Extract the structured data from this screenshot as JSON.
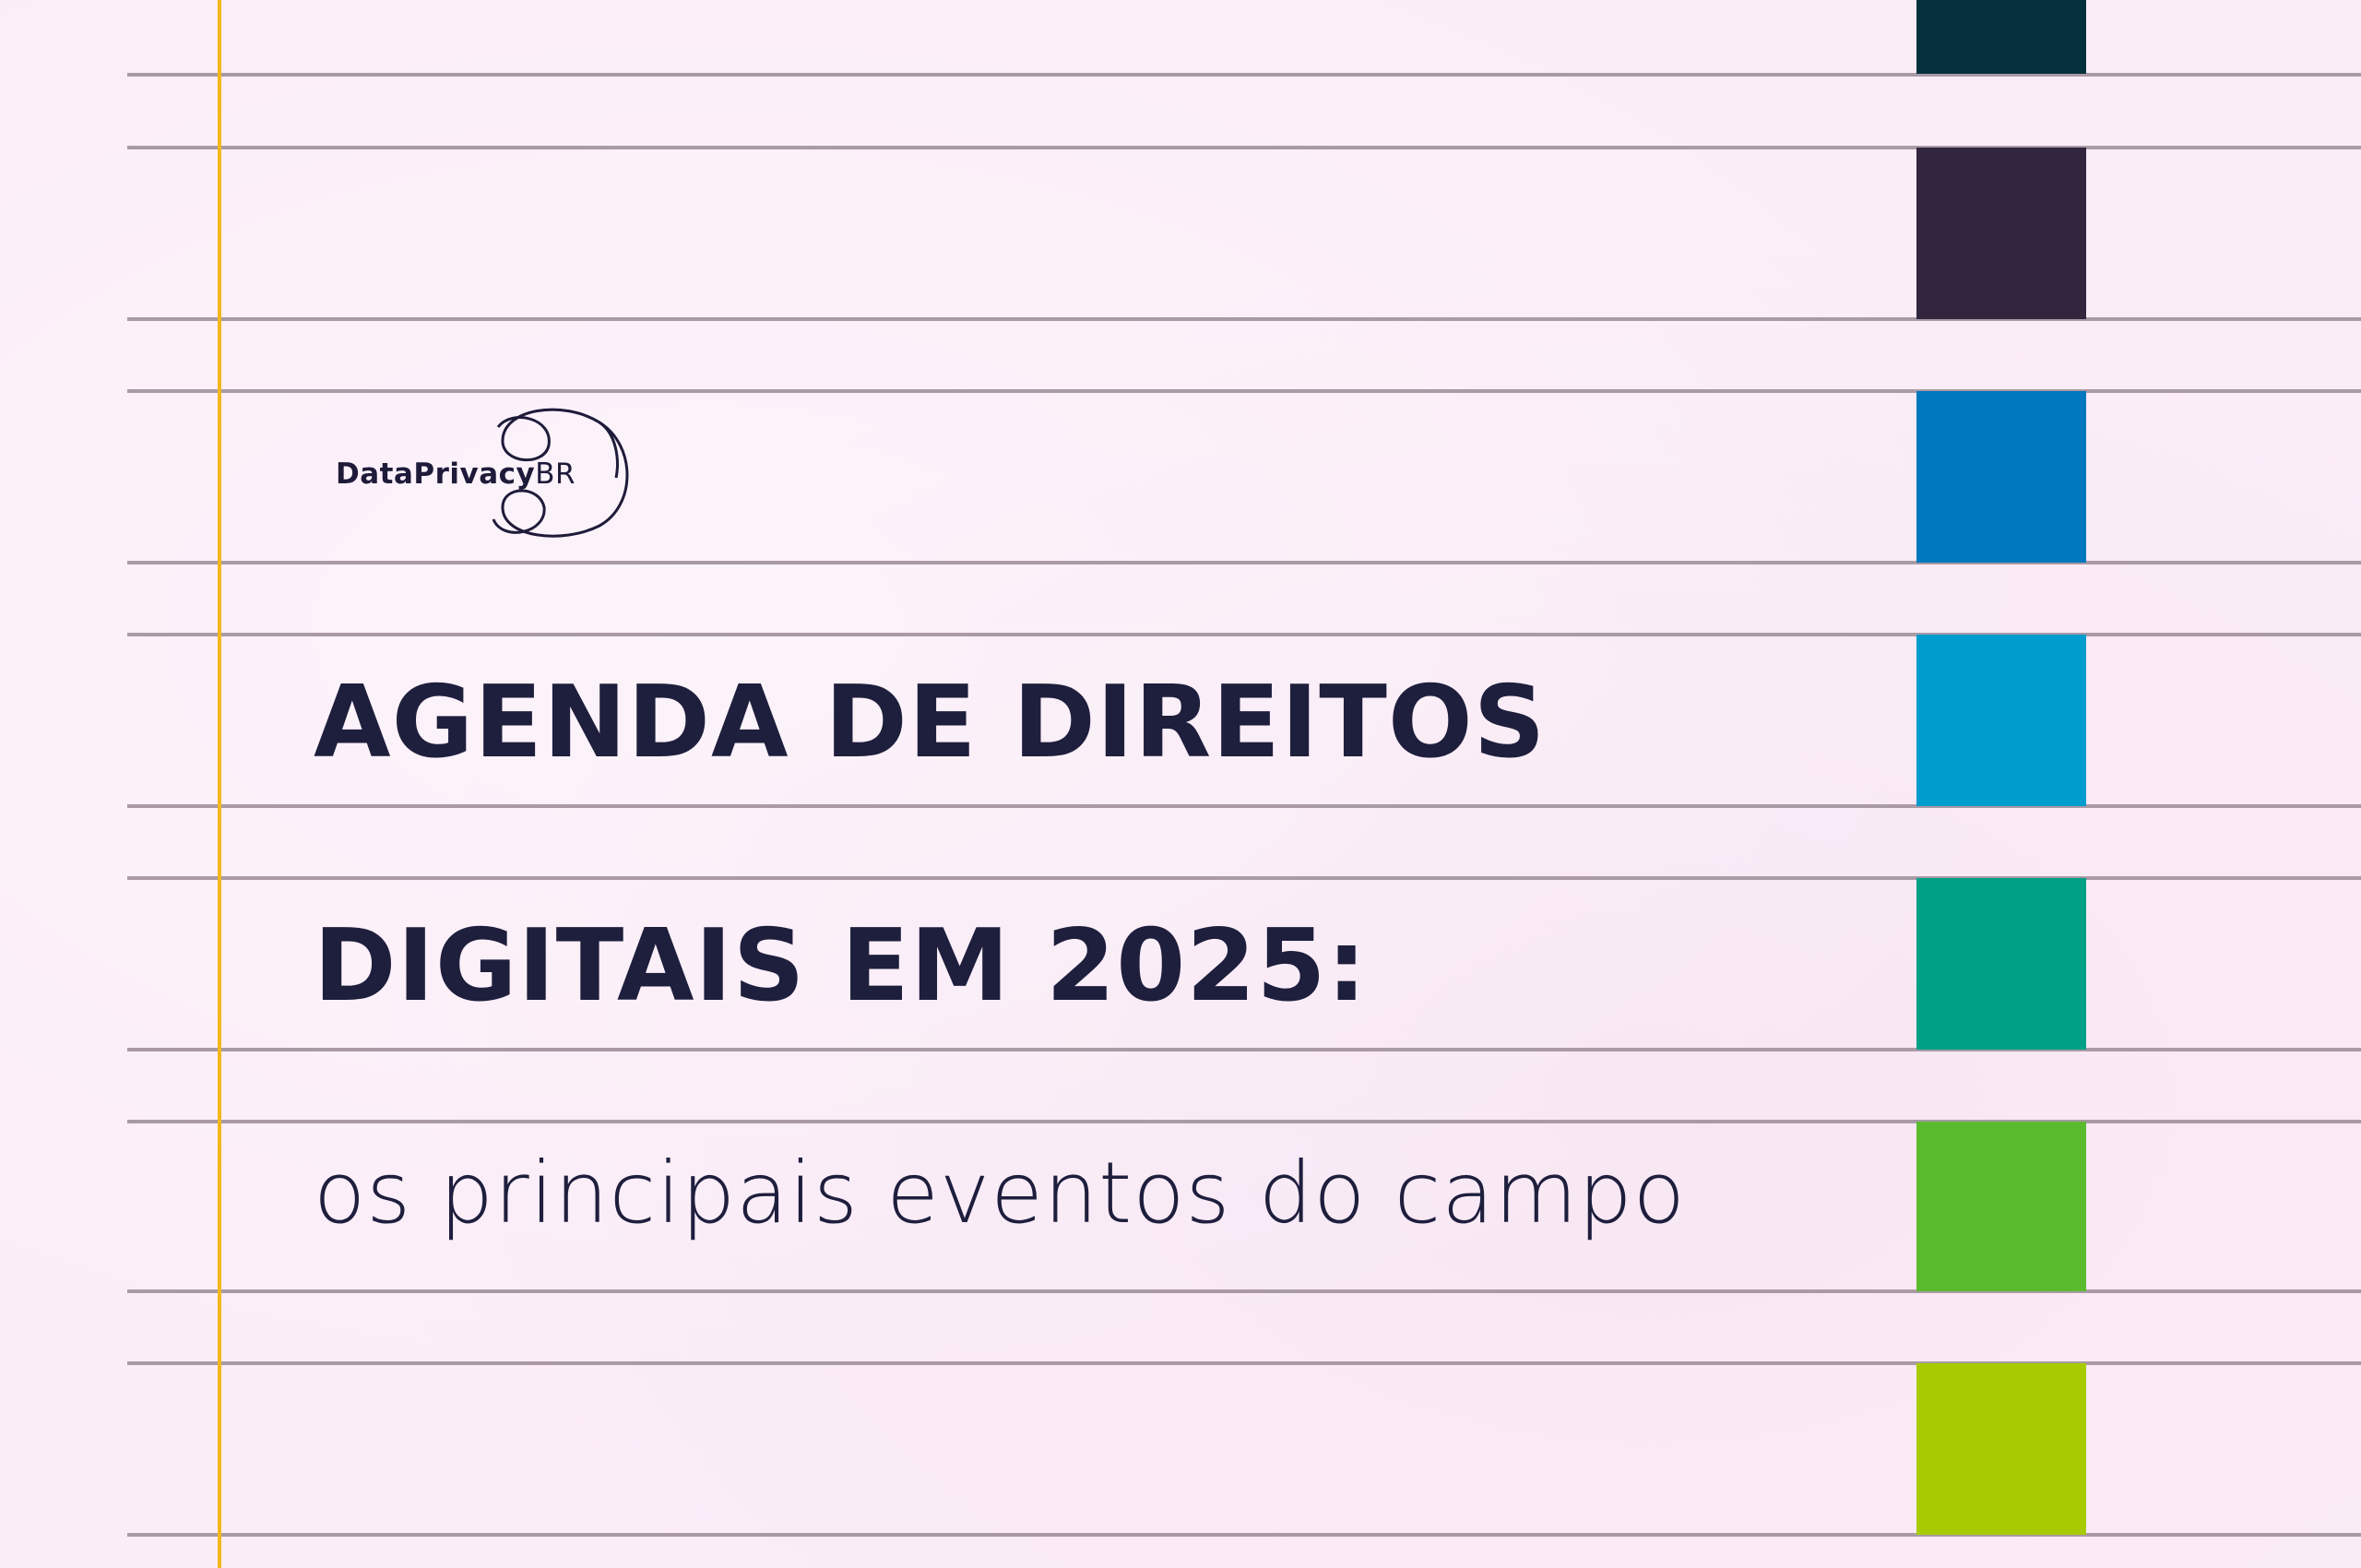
{
  "logo": {
    "name": "DataPrivacy",
    "suffix": "BR"
  },
  "headline": {
    "line1": "AGENDA DE DIREITOS",
    "line2": "DIGITAIS EM 2025:"
  },
  "subtitle": "os principais eventos do campo",
  "colors": {
    "background": "#fbedf8",
    "ruled_line": "#a99aa6",
    "margin_line": "#f2b81e",
    "text": "#1e1e3d",
    "swatches": [
      "#03303a",
      "#32263f",
      "#0078be",
      "#009ccd",
      "#00a086",
      "#5bbb2f",
      "#a7cb00"
    ]
  }
}
